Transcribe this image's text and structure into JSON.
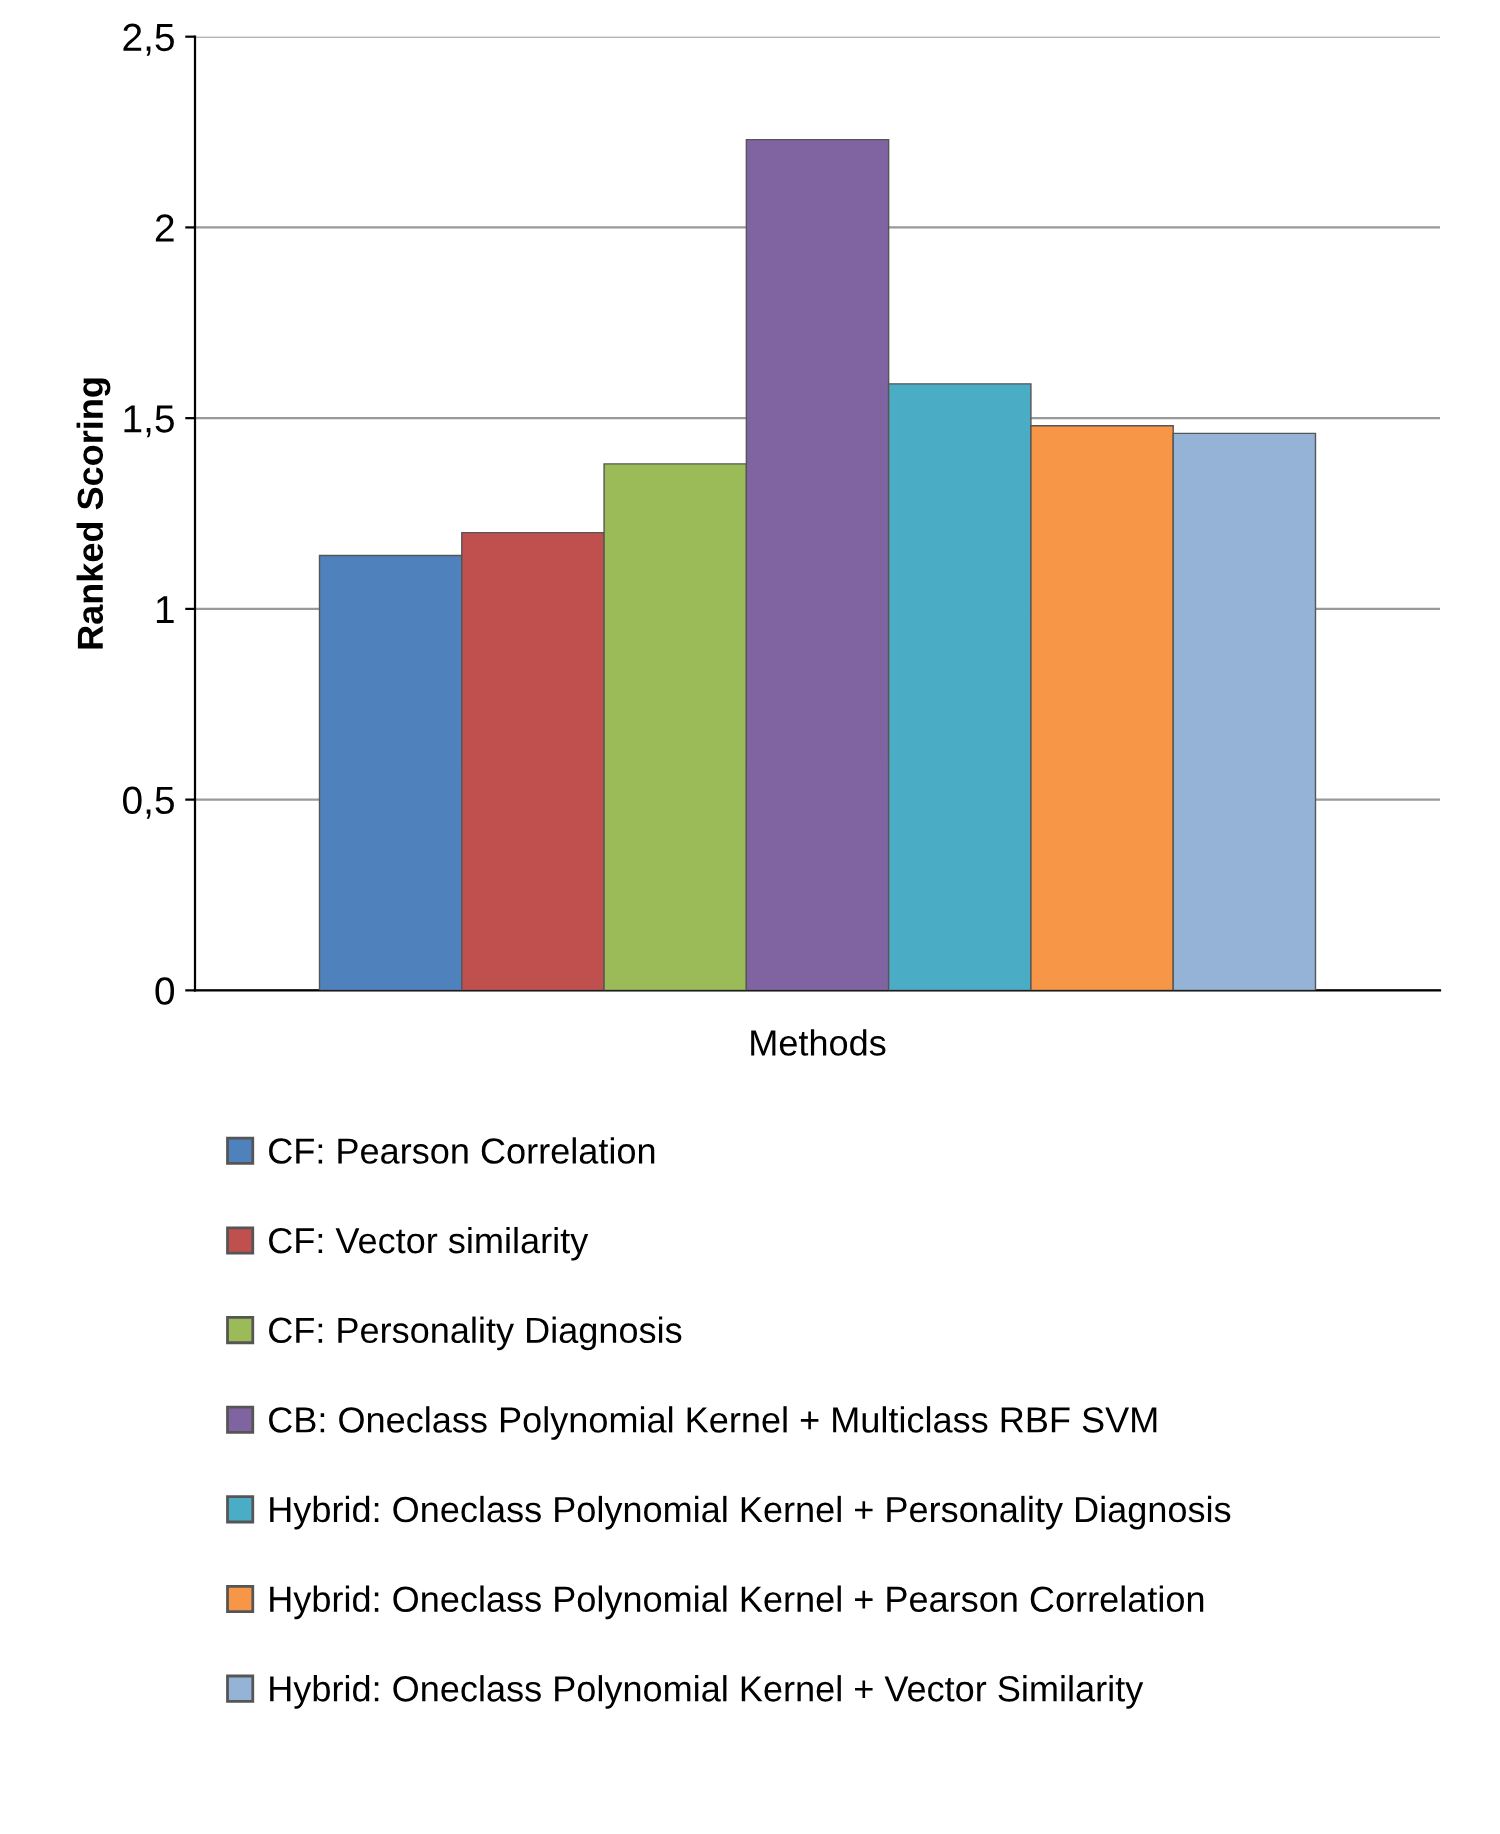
{
  "chart_data": {
    "type": "bar",
    "ylabel": "Ranked Scoring",
    "categories": [
      "Methods"
    ],
    "series": [
      {
        "name": "CF: Pearson Correlation",
        "color": "#4f81bd",
        "values": [
          1.14
        ]
      },
      {
        "name": "CF: Vector similarity",
        "color": "#c0504d",
        "values": [
          1.2
        ]
      },
      {
        "name": "CF: Personality Diagnosis",
        "color": "#9bbb59",
        "values": [
          1.38
        ]
      },
      {
        "name": "CB: Oneclass Polynomial Kernel + Multiclass RBF SVM",
        "color": "#8064a2",
        "values": [
          2.23
        ]
      },
      {
        "name": "Hybrid: Oneclass Polynomial Kernel + Personality Diagnosis",
        "color": "#4bacc6",
        "values": [
          1.59
        ]
      },
      {
        "name": "Hybrid: Oneclass Polynomial Kernel + Pearson Correlation",
        "color": "#f79646",
        "values": [
          1.48
        ]
      },
      {
        "name": "Hybrid: Oneclass Polynomial Kernel + Vector Similarity",
        "color": "#95b3d7",
        "values": [
          1.46
        ]
      }
    ],
    "ylim": [
      0,
      2.5
    ],
    "yticks": [
      {
        "value": 0,
        "label": "0"
      },
      {
        "value": 0.5,
        "label": "0,5"
      },
      {
        "value": 1,
        "label": "1"
      },
      {
        "value": 1.5,
        "label": "1,5"
      },
      {
        "value": 2,
        "label": "2"
      },
      {
        "value": 2.5,
        "label": "2,5"
      }
    ],
    "grid": "y",
    "legend": "bottom"
  }
}
